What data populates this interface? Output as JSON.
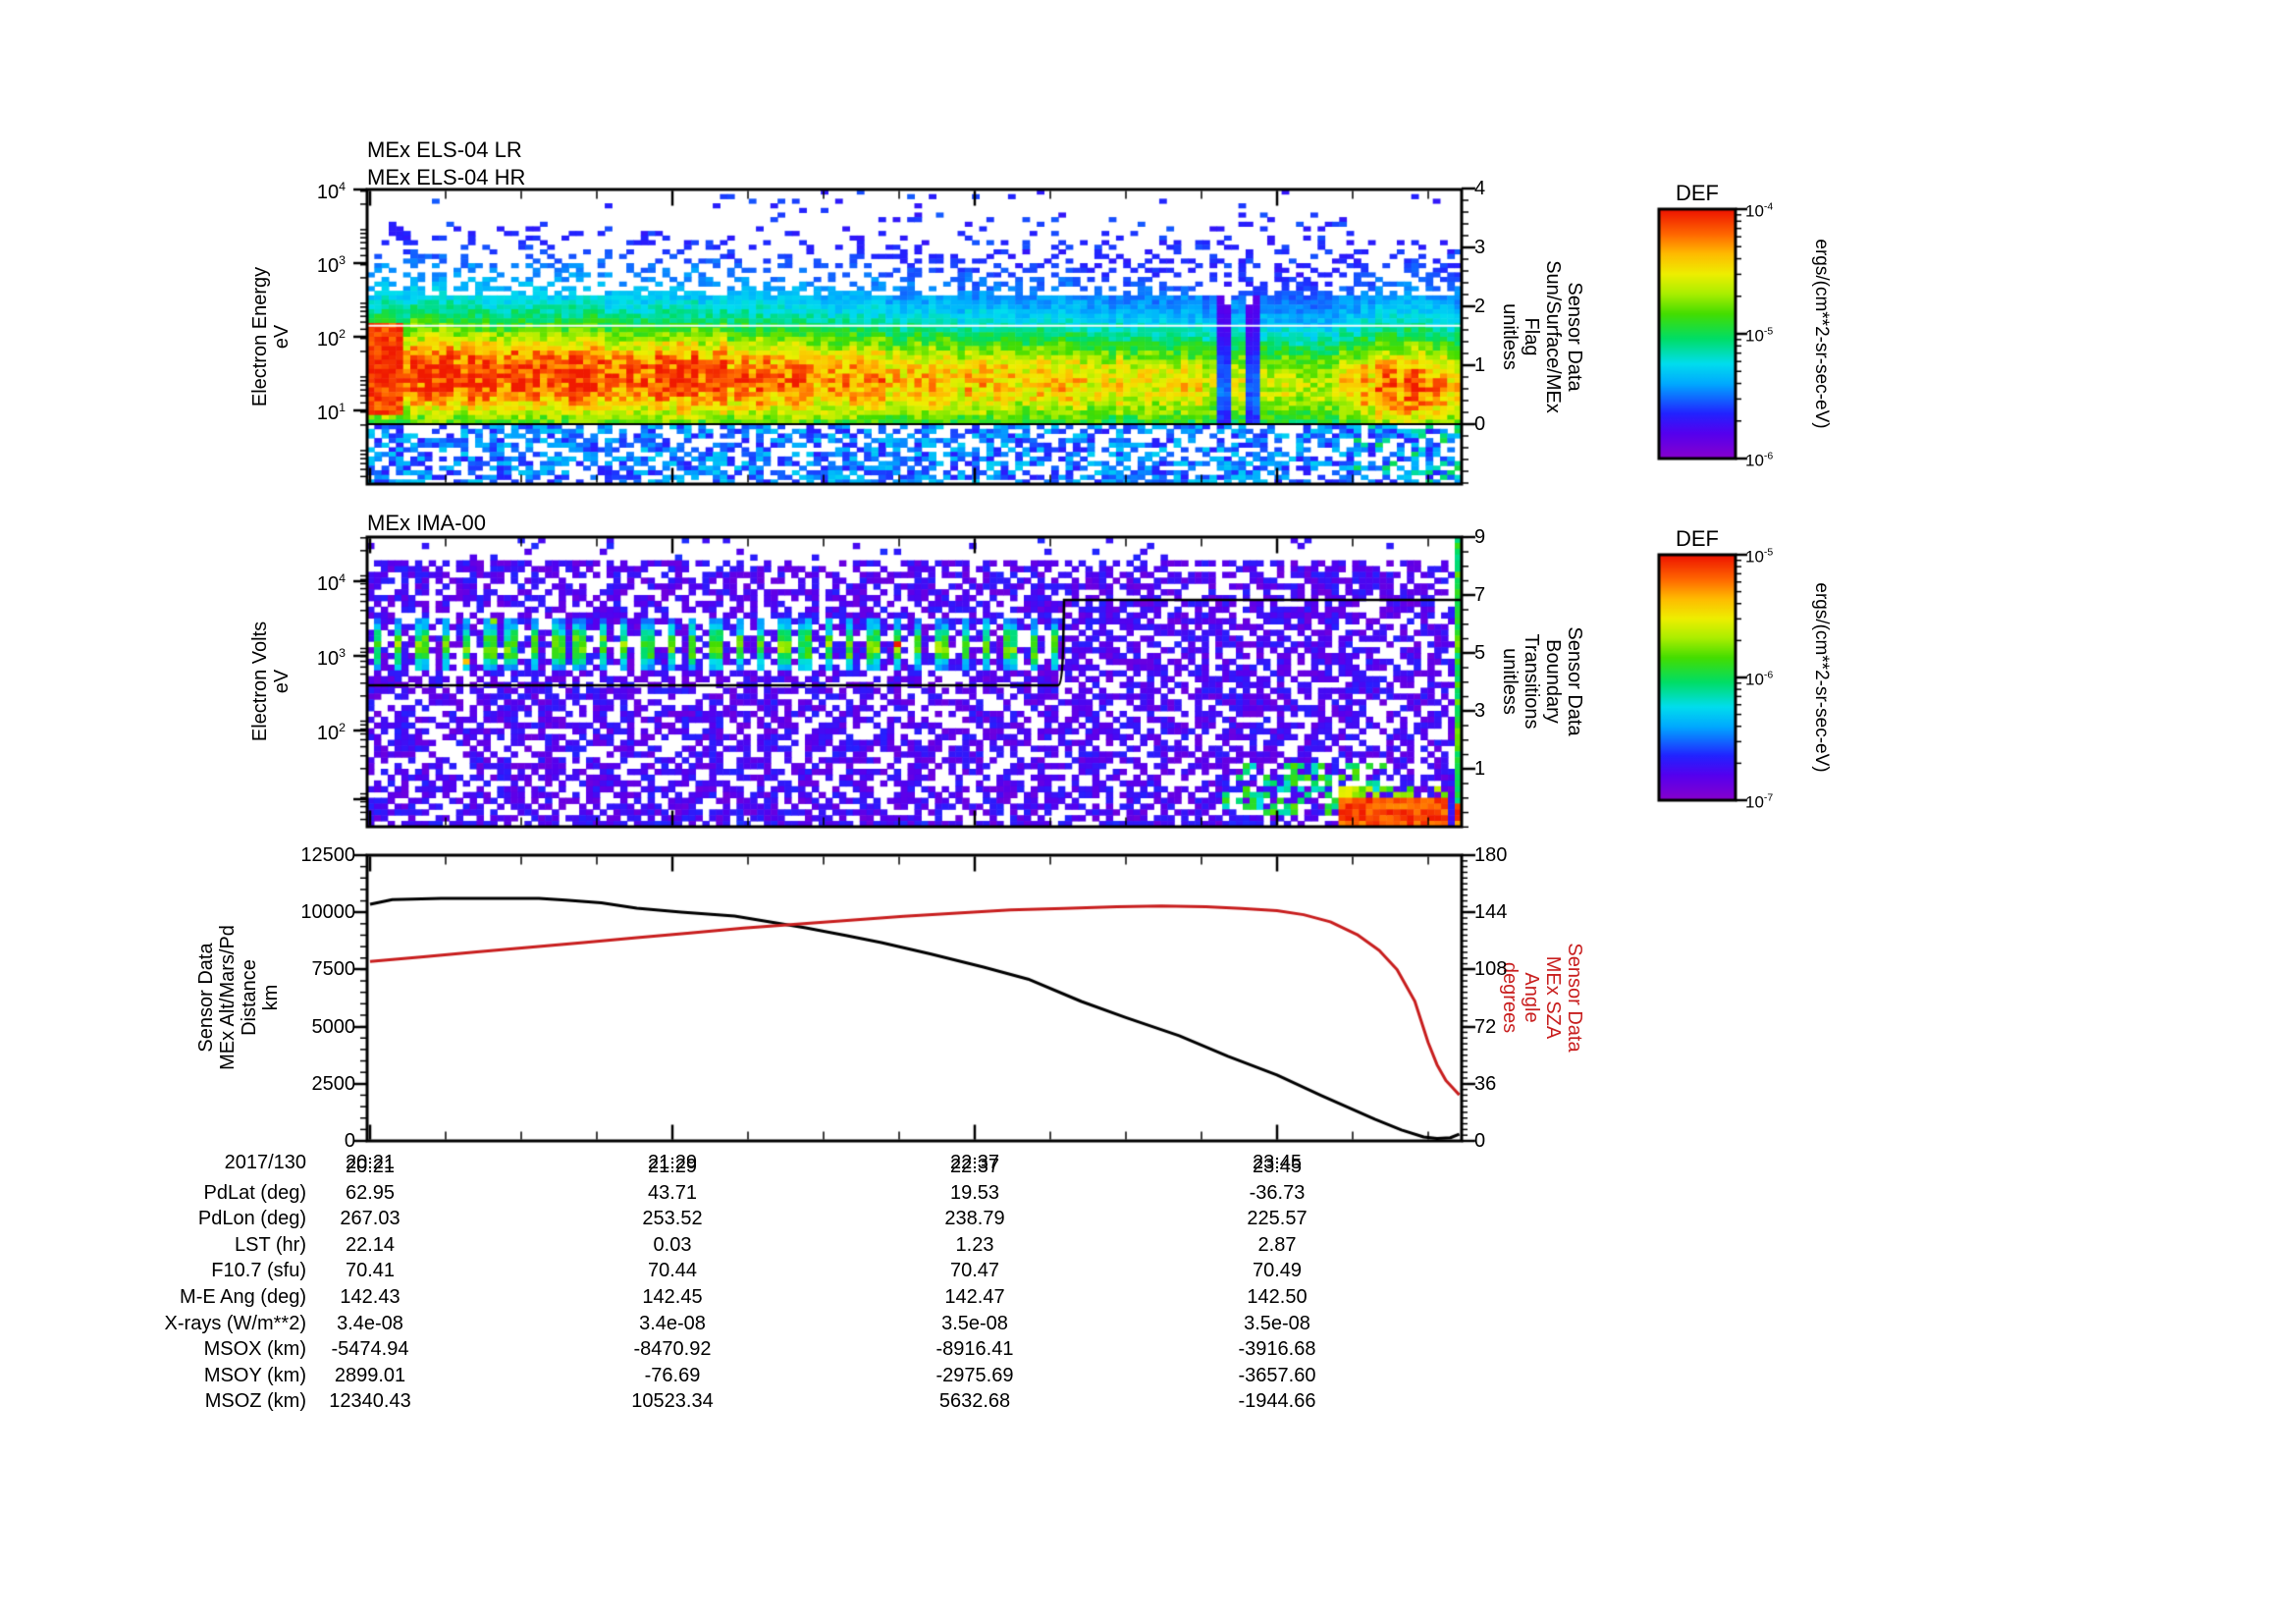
{
  "panels": [
    {
      "id": "els",
      "titles": [
        "MEx ELS-04 LR",
        "MEx ELS-04 HR"
      ],
      "left_axis": {
        "title": "Electron Energy\neV",
        "ticks": [
          "10^4",
          "10^3",
          "10^2",
          "10^1"
        ]
      },
      "right_axis": {
        "title": "Sensor Data\nSun/Surface/MEx\nFlag\nunitless",
        "ticks": [
          "4",
          "3",
          "2",
          "1",
          "0"
        ]
      }
    },
    {
      "id": "ima",
      "titles": [
        "MEx IMA-00"
      ],
      "left_axis": {
        "title": "Electron Volts\neV",
        "ticks": [
          "10^4",
          "10^3",
          "10^2"
        ]
      },
      "right_axis": {
        "title": "Sensor Data\nBoundary\nTransitions\nunitless",
        "ticks": [
          "9",
          "7",
          "5",
          "3",
          "1"
        ]
      }
    },
    {
      "id": "trajectory",
      "left_axis": {
        "title": "Sensor Data\nMEx Alt/Mars/Pd\nDistance\nkm",
        "ticks": [
          "12500",
          "10000",
          "7500",
          "5000",
          "2500",
          "0"
        ]
      },
      "right_axis": {
        "title": "Sensor Data\nMEx SZA\nAngle\ndegrees",
        "ticks": [
          "180",
          "144",
          "108",
          "72",
          "36",
          "0"
        ]
      },
      "x_axis": {
        "date": "2017/130",
        "ticks": [
          "20:21",
          "21:29",
          "22:37",
          "23:45"
        ]
      }
    }
  ],
  "colorbars": [
    {
      "title": "DEF",
      "ticks": [
        "10^-4",
        "10^-5",
        "10^-6"
      ],
      "unit": "ergs/(cm**2-sr-sec-eV)"
    },
    {
      "title": "DEF",
      "ticks": [
        "10^-5",
        "10^-6",
        "10^-7"
      ],
      "unit": "ergs/(cm**2-sr-sec-eV)"
    }
  ],
  "table": {
    "rows": [
      {
        "label": "2017/130",
        "values": [
          "20:21",
          "21:29",
          "22:37",
          "23:45"
        ]
      },
      {
        "label": "PdLat (deg)",
        "values": [
          "62.95",
          "43.71",
          "19.53",
          "-36.73"
        ]
      },
      {
        "label": "PdLon (deg)",
        "values": [
          "267.03",
          "253.52",
          "238.79",
          "225.57"
        ]
      },
      {
        "label": "LST (hr)",
        "values": [
          "22.14",
          "0.03",
          "1.23",
          "2.87"
        ]
      },
      {
        "label": "F10.7 (sfu)",
        "values": [
          "70.41",
          "70.44",
          "70.47",
          "70.49"
        ]
      },
      {
        "label": "M-E Ang (deg)",
        "values": [
          "142.43",
          "142.45",
          "142.47",
          "142.50"
        ]
      },
      {
        "label": "X-rays (W/m**2)",
        "values": [
          "3.4e-08",
          "3.4e-08",
          "3.5e-08",
          "3.5e-08"
        ]
      },
      {
        "label": "MSOX (km)",
        "values": [
          "-5474.94",
          "-8470.92",
          "-8916.41",
          "-3916.68"
        ]
      },
      {
        "label": "MSOY (km)",
        "values": [
          "2899.01",
          "-76.69",
          "-2975.69",
          "-3657.60"
        ]
      },
      {
        "label": "MSOZ (km)",
        "values": [
          "12340.43",
          "10523.34",
          "5632.68",
          "-1944.66"
        ]
      }
    ]
  },
  "colors": {
    "axis_red": "#c81e1e",
    "frame_black": "#000000",
    "colormap": [
      [
        0.0,
        "#8800cc"
      ],
      [
        0.1,
        "#5500ee"
      ],
      [
        0.18,
        "#2222ff"
      ],
      [
        0.3,
        "#00aaff"
      ],
      [
        0.38,
        "#00ddee"
      ],
      [
        0.48,
        "#00dd66"
      ],
      [
        0.58,
        "#44dd00"
      ],
      [
        0.66,
        "#aaee00"
      ],
      [
        0.74,
        "#eeee00"
      ],
      [
        0.82,
        "#ffbb00"
      ],
      [
        0.9,
        "#ff6600"
      ],
      [
        1.0,
        "#ee1100"
      ]
    ]
  },
  "chart_data": [
    {
      "type": "heatmap",
      "id": "els-spectrogram",
      "title": "MEx ELS-04 LR / MEx ELS-04 HR",
      "x_start": "2017/130 20:21",
      "x_tick_labels": [
        "20:21",
        "21:29",
        "22:37",
        "23:45"
      ],
      "x_tick_interval_min": 68,
      "x_span_min": 245.5,
      "y_label": "Electron Energy (eV)",
      "y_scale": "log",
      "y_range": [
        1,
        10000
      ],
      "z_label": "DEF ergs/(cm**2-sr-sec-eV)",
      "z_range": [
        1e-06,
        0.0001
      ],
      "flag_overlay": {
        "label": "Sun/Surface/MEx Flag",
        "constant_value": 0,
        "axis_range": [
          -1,
          4
        ]
      },
      "seam_logE": 2.15,
      "core_band": {
        "logE_center_start": 1.5,
        "logE_center_end": 1.3,
        "sigma": 0.42,
        "halo_sigma": 1.2,
        "amp_profile": [
          [
            0,
            0.97
          ],
          [
            0.3,
            0.93
          ],
          [
            0.45,
            0.82
          ],
          [
            0.6,
            0.74
          ],
          [
            0.75,
            0.7
          ],
          [
            0.88,
            0.64
          ],
          [
            0.93,
            0.87
          ],
          [
            0.985,
            0.85
          ],
          [
            1,
            0.72
          ]
        ],
        "gap_cols_t": [
          [
            0.775,
            0.792
          ],
          [
            0.803,
            0.818
          ]
        ]
      }
    },
    {
      "type": "heatmap",
      "id": "ima-spectrogram",
      "title": "MEx IMA-00",
      "y_label": "Electron Volts (eV)",
      "y_scale": "log",
      "y_range": [
        4.2,
        40000
      ],
      "z_label": "DEF ergs/(cm**2-sr-sec-eV)",
      "z_range": [
        1e-07,
        1e-05
      ],
      "boundary_overlay": {
        "label": "Boundary Transitions",
        "axis_range": [
          -1,
          9
        ],
        "segments": [
          {
            "t_min": [
              0,
              155.7
            ],
            "level": 4
          },
          {
            "t_min": [
              155.7,
              245.5
            ],
            "level": 7
          }
        ]
      },
      "features": {
        "ion_stripes": {
          "t_frac": [
            0,
            0.633
          ],
          "logE": [
            2.78,
            3.48
          ]
        },
        "green_blobs": {
          "t_frac": [
            0.78,
            0.93
          ],
          "logE": [
            0.8,
            1.5
          ]
        },
        "red_streak": {
          "t_frac": [
            0.885,
            0.99
          ],
          "logE": [
            0.6,
            0.98
          ]
        },
        "bright_edge_t_frac": 0.992
      }
    },
    {
      "type": "line",
      "id": "trajectory",
      "x_span_min": 245.5,
      "series": [
        {
          "name": "MEx Alt/Mars/Pd Distance",
          "units": "km",
          "color": "#000000",
          "axis": "left",
          "ylim": [
            0,
            12500
          ],
          "points": [
            [
              0,
              10350
            ],
            [
              5,
              10560
            ],
            [
              16,
              10610
            ],
            [
              38,
              10610
            ],
            [
              44,
              10540
            ],
            [
              52,
              10420
            ],
            [
              60,
              10180
            ],
            [
              70,
              10010
            ],
            [
              82,
              9840
            ],
            [
              90,
              9580
            ],
            [
              98,
              9320
            ],
            [
              107,
              8990
            ],
            [
              115,
              8680
            ],
            [
              126,
              8180
            ],
            [
              138,
              7600
            ],
            [
              148,
              7080
            ],
            [
              160,
              6100
            ],
            [
              170,
              5400
            ],
            [
              182,
              4600
            ],
            [
              193,
              3700
            ],
            [
              204,
              2880
            ],
            [
              214,
              1980
            ],
            [
              226,
              950
            ],
            [
              232,
              480
            ],
            [
              237,
              170
            ],
            [
              240,
              110
            ],
            [
              243,
              140
            ],
            [
              245,
              300
            ]
          ]
        },
        {
          "name": "MEx SZA Angle",
          "units": "degrees",
          "color": "#c81e1e",
          "axis": "right",
          "ylim": [
            0,
            180
          ],
          "points": [
            [
              0,
              113
            ],
            [
              12,
              116
            ],
            [
              24,
              119
            ],
            [
              36,
              122
            ],
            [
              48,
              125
            ],
            [
              60,
              128
            ],
            [
              72,
              131
            ],
            [
              84,
              134
            ],
            [
              96,
              136.5
            ],
            [
              108,
              139
            ],
            [
              120,
              141.5
            ],
            [
              132,
              143.5
            ],
            [
              144,
              145.5
            ],
            [
              156,
              146.5
            ],
            [
              168,
              147.5
            ],
            [
              178,
              148
            ],
            [
              188,
              147.5
            ],
            [
              196,
              146.5
            ],
            [
              204,
              145
            ],
            [
              210,
              142.5
            ],
            [
              216,
              138
            ],
            [
              222,
              130
            ],
            [
              227,
              120
            ],
            [
              231,
              108
            ],
            [
              235,
              88
            ],
            [
              238,
              62
            ],
            [
              240,
              48
            ],
            [
              242,
              38
            ],
            [
              244,
              32
            ],
            [
              245,
              29
            ]
          ]
        }
      ]
    }
  ]
}
